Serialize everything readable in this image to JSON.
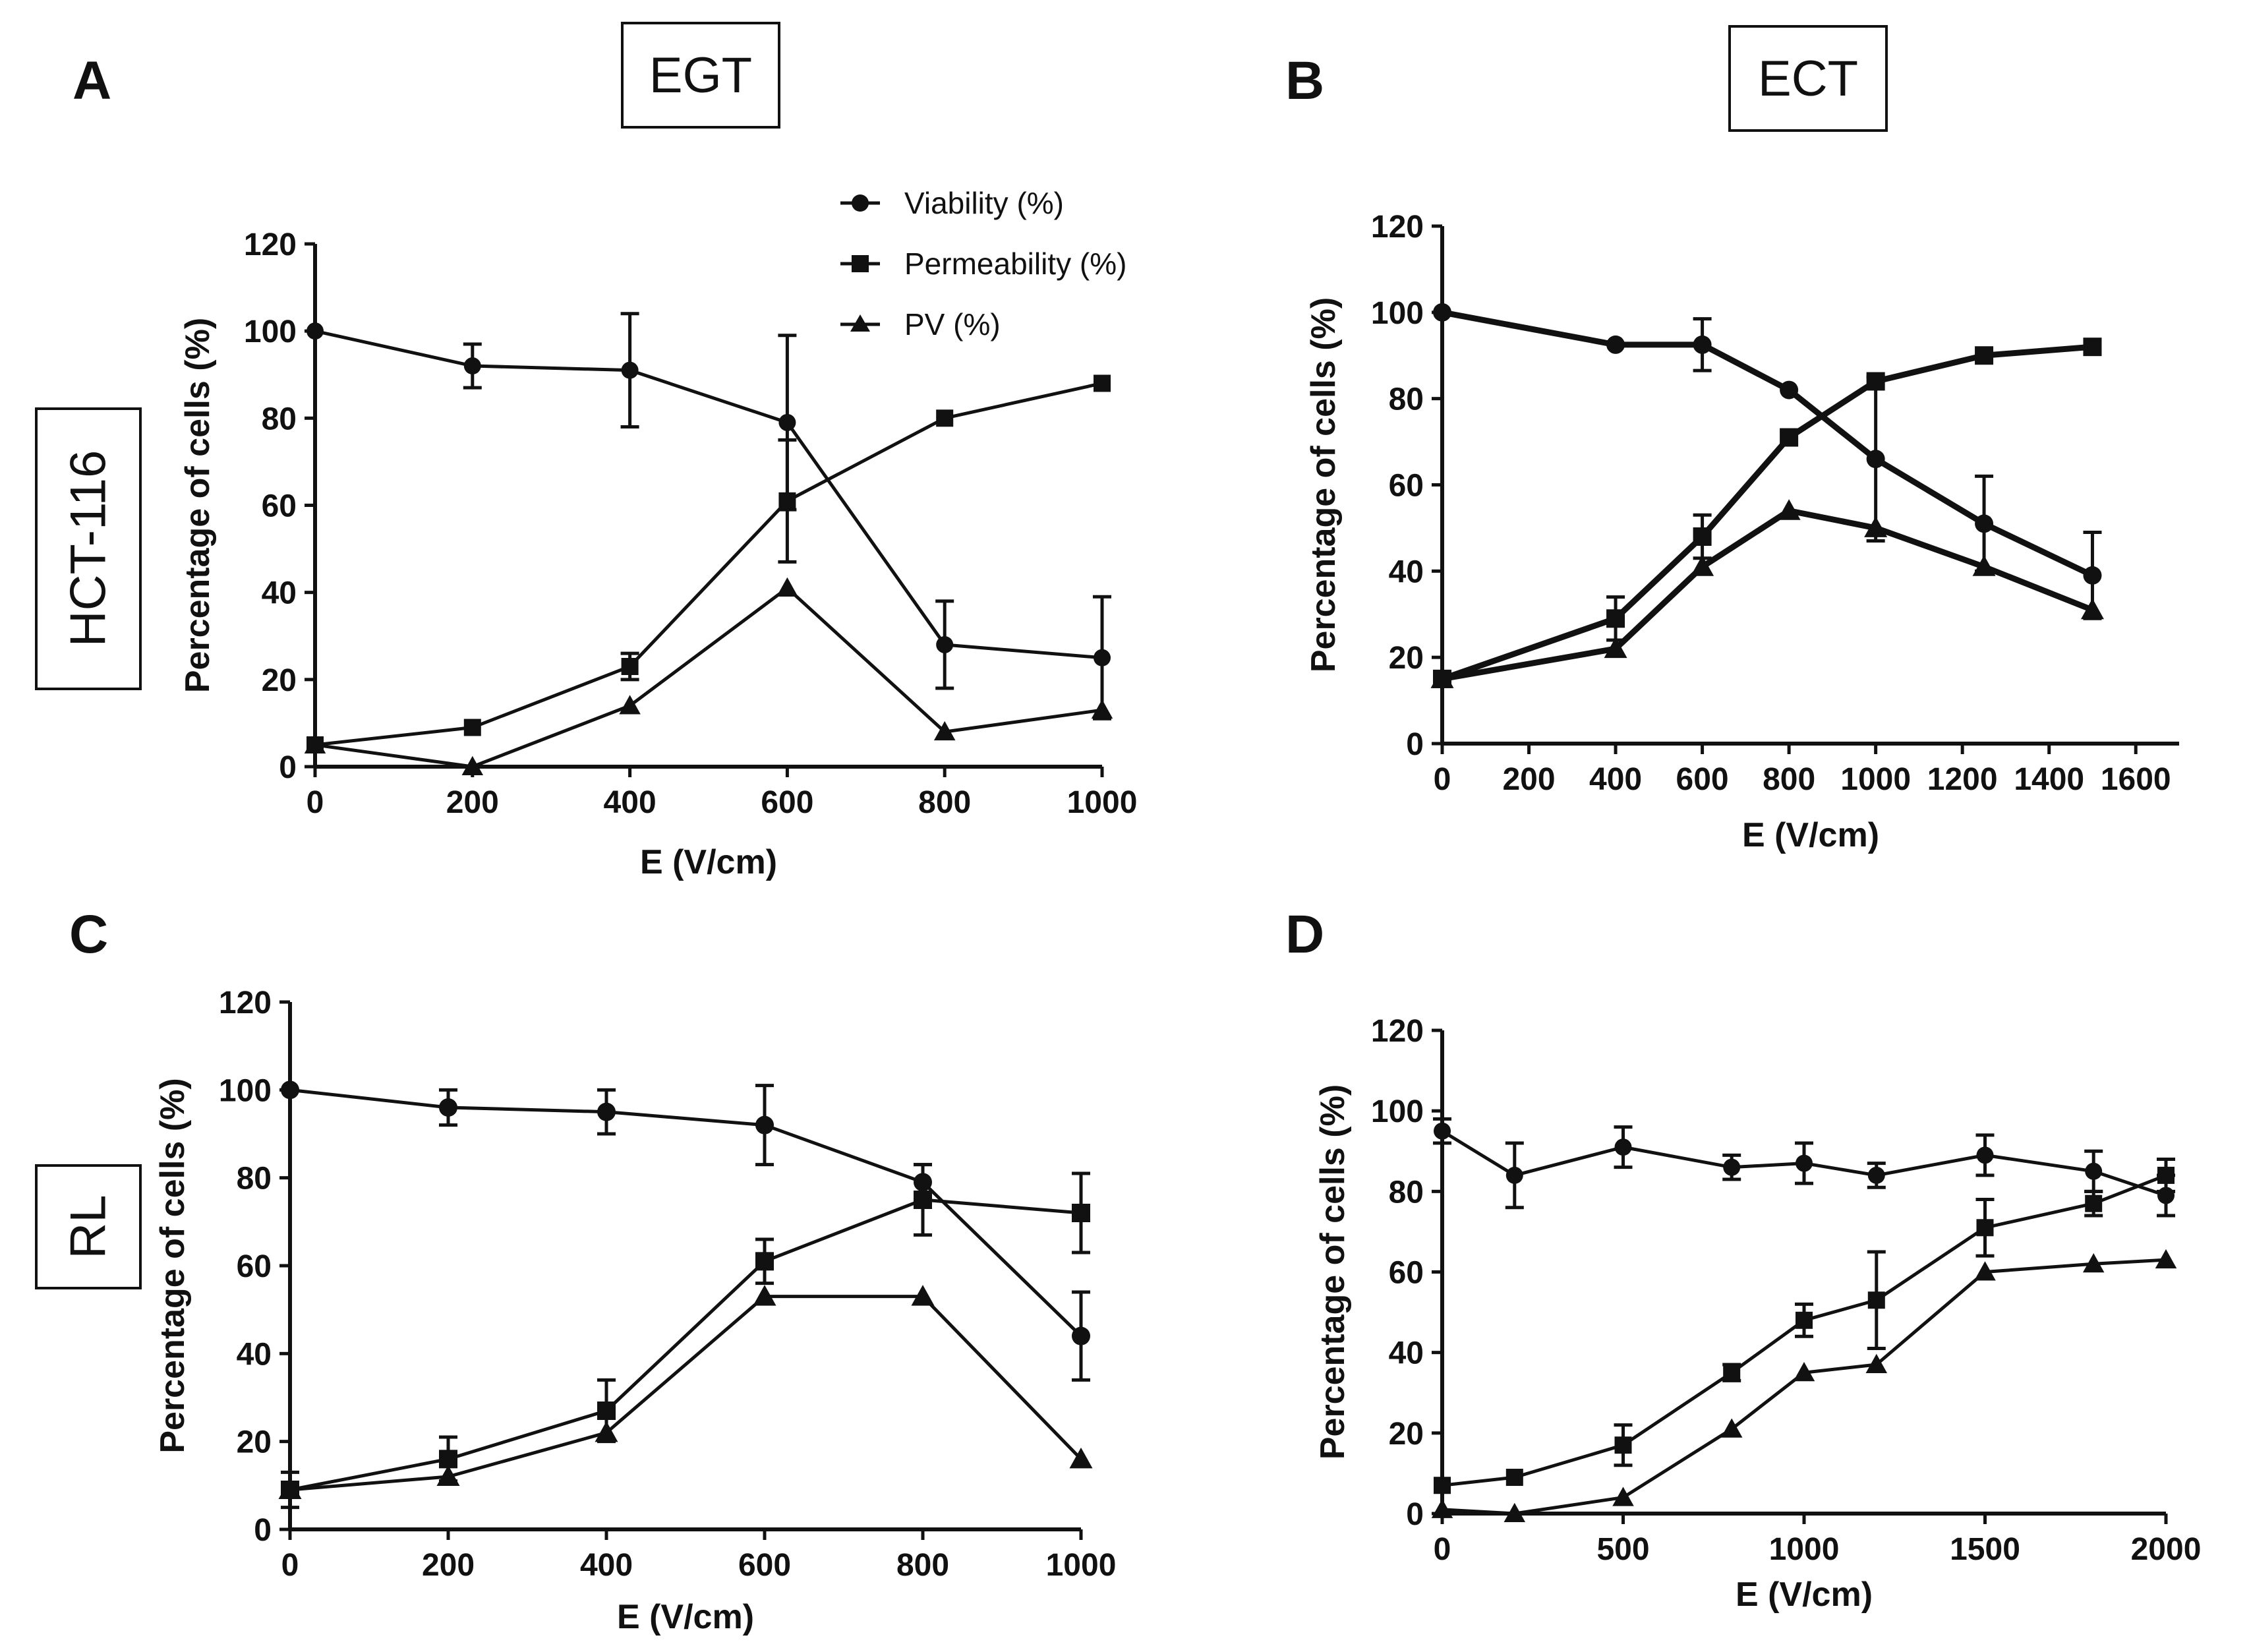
{
  "figure": {
    "row_labels": [
      "HCT-116",
      "RL"
    ],
    "column_labels": [
      "EGT",
      "ECT"
    ]
  },
  "legend": {
    "entries": [
      "Viability (%)",
      "Permeability (%)",
      "PV (%)"
    ]
  },
  "chart_data": [
    {
      "type": "line",
      "panel": "A",
      "column_label": "EGT",
      "row_label": "HCT-116",
      "xlabel": "E (V/cm)",
      "ylabel": "Percentage of cells (%)",
      "xlim": [
        0,
        1000
      ],
      "ylim": [
        0,
        120
      ],
      "xticks": [
        0,
        200,
        400,
        600,
        800,
        1000
      ],
      "yticks": [
        0,
        20,
        40,
        60,
        80,
        100,
        120
      ],
      "x": [
        0,
        200,
        400,
        600,
        800,
        1000
      ],
      "series": [
        {
          "name": "Viability (%)",
          "marker": "circle",
          "values": [
            100,
            92,
            91,
            79,
            28,
            25
          ],
          "errors": [
            0,
            5,
            13,
            20,
            10,
            14
          ]
        },
        {
          "name": "Permeability (%)",
          "marker": "square",
          "values": [
            5,
            9,
            23,
            61,
            80,
            88
          ],
          "errors": [
            0,
            0,
            3,
            14,
            0,
            0
          ]
        },
        {
          "name": "PV (%)",
          "marker": "triangle",
          "values": [
            5,
            0,
            14,
            41,
            8,
            13
          ],
          "errors": [
            0,
            0,
            0,
            0,
            0,
            0
          ]
        }
      ]
    },
    {
      "type": "line",
      "panel": "B",
      "column_label": "ECT",
      "row_label": "HCT-116",
      "xlabel": "E (V/cm)",
      "ylabel": "Percentage of cells (%)",
      "xlim": [
        0,
        1700
      ],
      "ylim": [
        0,
        120
      ],
      "xticks": [
        0,
        200,
        400,
        600,
        800,
        1000,
        1200,
        1400,
        1600
      ],
      "yticks": [
        0,
        20,
        40,
        60,
        80,
        100,
        120
      ],
      "x": [
        0,
        400,
        600,
        800,
        1000,
        1250,
        1500
      ],
      "series": [
        {
          "name": "Viability (%)",
          "marker": "circle",
          "values": [
            100,
            92.5,
            92.5,
            82,
            66,
            51,
            39
          ],
          "errors": [
            0,
            0,
            6,
            0,
            19,
            11,
            10
          ]
        },
        {
          "name": "Permeability (%)",
          "marker": "square",
          "values": [
            15,
            29,
            48,
            71,
            84,
            90,
            92
          ],
          "errors": [
            0,
            5,
            5,
            0,
            0,
            0,
            0
          ]
        },
        {
          "name": "PV (%)",
          "marker": "triangle",
          "values": [
            15,
            22,
            41,
            54,
            50,
            41,
            31
          ],
          "errors": [
            0,
            0,
            0,
            0,
            0,
            0,
            0
          ]
        }
      ]
    },
    {
      "type": "line",
      "panel": "C",
      "row_label": "RL",
      "xlabel": "E (V/cm)",
      "ylabel": "Percentage of cells (%)",
      "xlim": [
        0,
        1000
      ],
      "ylim": [
        0,
        120
      ],
      "xticks": [
        0,
        200,
        400,
        600,
        800,
        1000
      ],
      "yticks": [
        0,
        20,
        40,
        60,
        80,
        100,
        120
      ],
      "x": [
        0,
        200,
        400,
        600,
        800,
        1000
      ],
      "series": [
        {
          "name": "Viability (%)",
          "marker": "circle",
          "values": [
            100,
            96,
            95,
            92,
            79,
            44
          ],
          "errors": [
            0,
            4,
            5,
            9,
            4,
            10
          ]
        },
        {
          "name": "Permeability (%)",
          "marker": "square",
          "values": [
            9,
            16,
            27,
            61,
            75,
            72
          ],
          "errors": [
            4,
            5,
            7,
            5,
            8,
            9
          ]
        },
        {
          "name": "PV (%)",
          "marker": "triangle",
          "values": [
            9,
            12,
            22,
            53,
            53,
            16
          ],
          "errors": [
            0,
            0,
            0,
            0,
            0,
            0
          ]
        }
      ]
    },
    {
      "type": "line",
      "panel": "D",
      "xlabel": "E (V/cm)",
      "ylabel": "Percentage of cells (%)",
      "xlim": [
        0,
        2000
      ],
      "ylim": [
        0,
        120
      ],
      "xticks": [
        0,
        500,
        1000,
        1500,
        2000
      ],
      "yticks": [
        0,
        20,
        40,
        60,
        80,
        100,
        120
      ],
      "x": [
        0,
        200,
        500,
        800,
        1000,
        1200,
        1500,
        1800,
        2000
      ],
      "series": [
        {
          "name": "Viability (%)",
          "marker": "circle",
          "values": [
            95,
            84,
            91,
            86,
            87,
            84,
            89,
            85,
            79
          ],
          "errors": [
            3,
            8,
            5,
            3,
            5,
            3,
            5,
            5,
            5
          ]
        },
        {
          "name": "Permeability (%)",
          "marker": "square",
          "values": [
            7,
            9,
            17,
            35,
            48,
            53,
            71,
            77,
            84
          ],
          "errors": [
            0,
            0,
            5,
            2,
            4,
            12,
            7,
            3,
            4
          ]
        },
        {
          "name": "PV (%)",
          "marker": "triangle",
          "values": [
            1,
            0,
            4,
            21,
            35,
            37,
            60,
            62,
            63
          ],
          "errors": [
            0,
            0,
            0,
            0,
            0,
            0,
            0,
            0,
            0
          ]
        }
      ]
    }
  ]
}
